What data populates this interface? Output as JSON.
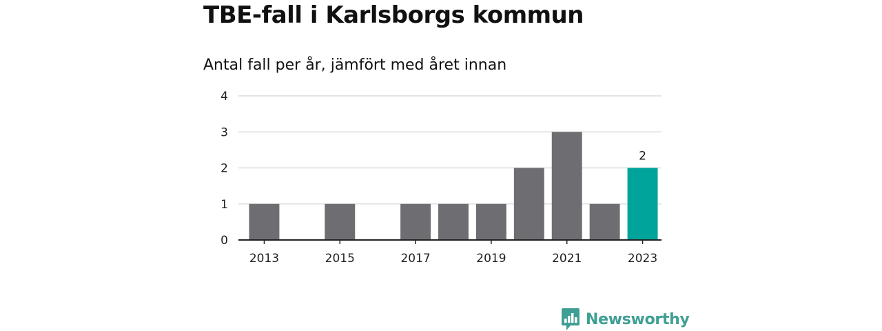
{
  "header": {
    "title": "TBE-fall i Karlsborgs kommun",
    "subtitle": "Antal fall per år, jämfört med året innan"
  },
  "brand": {
    "name": "Newsworthy",
    "icon": "newsworthy-logo-icon",
    "color": "#3f9f94"
  },
  "chart_data": {
    "type": "bar",
    "categories": [
      "2013",
      "2014",
      "2015",
      "2016",
      "2017",
      "2018",
      "2019",
      "2020",
      "2021",
      "2022",
      "2023"
    ],
    "x_tick_labels": [
      "2013",
      "2015",
      "2017",
      "2019",
      "2021",
      "2023"
    ],
    "values": [
      1,
      0,
      1,
      0,
      1,
      1,
      1,
      2,
      3,
      1,
      2
    ],
    "ylim": [
      0,
      4
    ],
    "y_ticks": [
      0,
      1,
      2,
      3,
      4
    ],
    "grid": true,
    "colors": {
      "default": "#6e6d72",
      "highlight": "#00a49a",
      "grid": "#dcdcdc",
      "axis": "#222222"
    },
    "highlight": {
      "category": "2023",
      "label": "2"
    }
  }
}
